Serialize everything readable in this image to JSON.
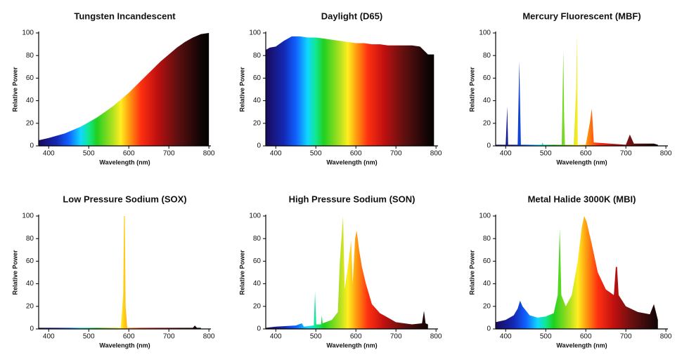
{
  "chart_data": [
    {
      "type": "area",
      "title": "Tungsten Incandescent",
      "x_label": "Wavelength (nm)",
      "y_label": "Relative Power",
      "x": [
        375,
        400,
        420,
        440,
        460,
        480,
        500,
        520,
        540,
        560,
        580,
        600,
        620,
        640,
        660,
        680,
        700,
        720,
        740,
        760,
        780,
        800
      ],
      "values": [
        5,
        7,
        9,
        11,
        14,
        17,
        21,
        25,
        30,
        35,
        41,
        47,
        54,
        61,
        68,
        75,
        81,
        87,
        92,
        96,
        99,
        100
      ],
      "xlim": [
        375,
        805
      ],
      "ylim": [
        0,
        100
      ],
      "xticks": [
        400,
        500,
        600,
        700,
        800
      ],
      "yticks": [
        0,
        20,
        40,
        60,
        80,
        100
      ]
    },
    {
      "type": "area",
      "title": "Daylight (D65)",
      "x_label": "Wavelength (nm)",
      "y_label": "Relative Power",
      "x": [
        375,
        385,
        400,
        420,
        440,
        460,
        480,
        500,
        520,
        540,
        560,
        580,
        600,
        620,
        640,
        660,
        680,
        700,
        720,
        740,
        760,
        780,
        795
      ],
      "values": [
        85,
        87,
        88,
        93,
        97,
        97,
        96,
        96,
        95,
        94,
        93,
        92,
        91,
        91,
        90,
        90,
        89,
        89,
        89,
        89,
        88,
        81,
        81
      ],
      "xlim": [
        375,
        805
      ],
      "ylim": [
        0,
        100
      ],
      "xticks": [
        400,
        500,
        600,
        700,
        800
      ],
      "yticks": [
        0,
        20,
        40,
        60,
        80,
        100
      ]
    },
    {
      "type": "area",
      "title": "Mercury Fluorescent (MBF)",
      "x_label": "Wavelength (nm)",
      "y_label": "Relative Power",
      "x": [
        375,
        400,
        404,
        406,
        430,
        434,
        438,
        490,
        492,
        494,
        540,
        544,
        546,
        548,
        570,
        576,
        578,
        580,
        600,
        610,
        615,
        620,
        700,
        710,
        720,
        770,
        780
      ],
      "values": [
        1,
        1,
        35,
        1,
        1,
        75,
        1,
        1,
        3,
        1,
        1,
        84,
        25,
        1,
        1,
        50,
        100,
        1,
        1,
        20,
        33,
        3,
        1,
        10,
        2,
        2,
        1
      ],
      "xlim": [
        375,
        805
      ],
      "ylim": [
        0,
        100
      ],
      "xticks": [
        400,
        500,
        600,
        700,
        800
      ],
      "yticks": [
        0,
        20,
        40,
        60,
        80,
        100
      ]
    },
    {
      "type": "area",
      "title": "Low Pressure Sodium (SOX)",
      "x_label": "Wavelength (nm)",
      "y_label": "Relative Power",
      "x": [
        375,
        580,
        586,
        588,
        590,
        592,
        596,
        760,
        765,
        770,
        780
      ],
      "values": [
        1,
        1,
        30,
        100,
        100,
        20,
        1,
        1,
        3,
        1,
        1
      ],
      "xlim": [
        375,
        805
      ],
      "ylim": [
        0,
        100
      ],
      "xticks": [
        400,
        500,
        600,
        700,
        800
      ],
      "yticks": [
        0,
        20,
        40,
        60,
        80,
        100
      ]
    },
    {
      "type": "area",
      "title": "High Pressure Sodium (SON)",
      "x_label": "Wavelength (nm)",
      "y_label": "Relative Power",
      "x": [
        375,
        400,
        450,
        465,
        470,
        495,
        498,
        501,
        513,
        515,
        517,
        540,
        555,
        560,
        568,
        572,
        580,
        588,
        592,
        598,
        602,
        608,
        615,
        625,
        640,
        660,
        680,
        700,
        740,
        765,
        770,
        774,
        780
      ],
      "values": [
        1,
        2,
        3,
        5,
        2,
        3,
        33,
        4,
        4,
        12,
        5,
        8,
        15,
        60,
        100,
        35,
        55,
        78,
        40,
        80,
        87,
        70,
        55,
        40,
        22,
        14,
        10,
        6,
        4,
        5,
        16,
        5,
        4
      ],
      "xlim": [
        375,
        805
      ],
      "ylim": [
        0,
        100
      ],
      "xticks": [
        400,
        500,
        600,
        700,
        800
      ],
      "yticks": [
        0,
        20,
        40,
        60,
        80,
        100
      ]
    },
    {
      "type": "area",
      "title": "Metal Halide 3000K (MBI)",
      "x_label": "Wavelength (nm)",
      "y_label": "Relative Power",
      "x": [
        375,
        400,
        420,
        430,
        436,
        442,
        460,
        480,
        500,
        520,
        530,
        535,
        539,
        550,
        565,
        580,
        590,
        596,
        602,
        615,
        630,
        650,
        670,
        675,
        678,
        682,
        700,
        730,
        760,
        770,
        775,
        780
      ],
      "values": [
        6,
        8,
        12,
        18,
        25,
        20,
        12,
        10,
        11,
        14,
        30,
        89,
        30,
        20,
        30,
        60,
        90,
        100,
        95,
        75,
        50,
        35,
        30,
        55,
        55,
        30,
        20,
        15,
        13,
        22,
        15,
        8
      ],
      "xlim": [
        375,
        805
      ],
      "ylim": [
        0,
        100
      ],
      "xticks": [
        400,
        500,
        600,
        700,
        800
      ],
      "yticks": [
        0,
        20,
        40,
        60,
        80,
        100
      ]
    }
  ]
}
